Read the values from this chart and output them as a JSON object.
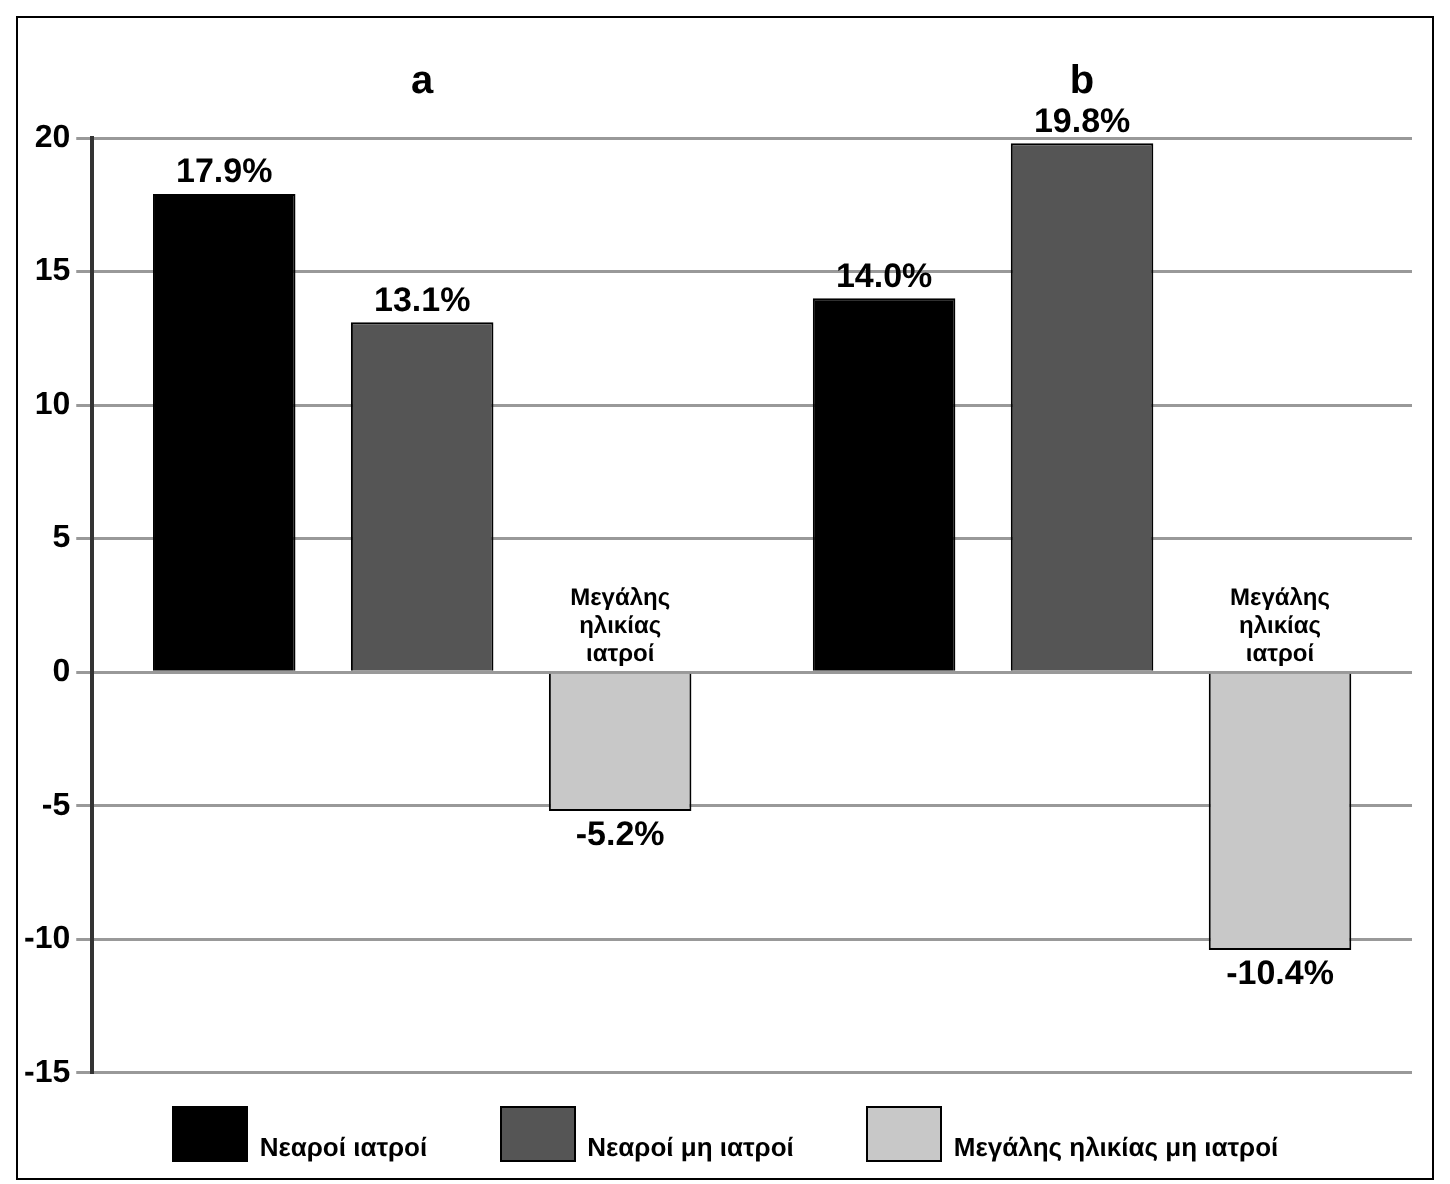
{
  "chart_data": {
    "type": "bar",
    "categories": [
      "a",
      "b"
    ],
    "ylim": [
      -15,
      20
    ],
    "yticks": [
      -15,
      -10,
      -5,
      0,
      5,
      10,
      15,
      20
    ],
    "grid": "y",
    "legend": "bottom",
    "annotations": [
      "Μεγάλης ηλικίας ιατροί",
      "Μεγάλης ηλικίας ιατροί"
    ],
    "series": [
      {
        "name": "Νεαροί ιατροί",
        "color": "#000000",
        "values": [
          17.9,
          14.0
        ],
        "value_labels": [
          "17.9%",
          "14.0%"
        ]
      },
      {
        "name": "Νεαροί μη ιατροί",
        "color": "#555555",
        "values": [
          13.1,
          19.8
        ],
        "value_labels": [
          "13.1%",
          "19.8%"
        ]
      },
      {
        "name": "Μεγάλης ηλικίας μη ιατροί",
        "color": "#c8c8c8",
        "values": [
          -5.2,
          -10.4
        ],
        "value_labels": [
          "-5.2%",
          "-10.4%"
        ]
      }
    ]
  }
}
